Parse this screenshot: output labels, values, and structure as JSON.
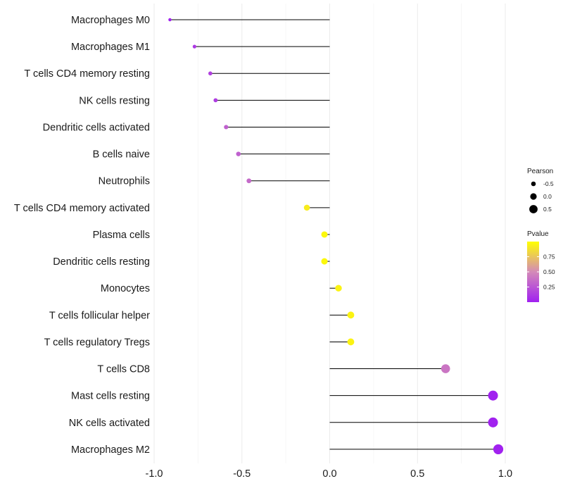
{
  "chart_data": {
    "type": "lollipop",
    "categories": [
      "Macrophages M0",
      "Macrophages M1",
      "T cells CD4 memory resting",
      "NK cells resting",
      "Dendritic cells activated",
      "B cells naive",
      "Neutrophils",
      "T cells CD4 memory activated",
      "Plasma cells",
      "Dendritic cells resting",
      "Monocytes",
      "T cells follicular helper",
      "T cells regulatory  Tregs",
      "T cells CD8",
      "Mast cells resting",
      "NK cells activated",
      "Macrophages M2"
    ],
    "values": [
      -0.91,
      -0.77,
      -0.68,
      -0.65,
      -0.59,
      -0.52,
      -0.46,
      -0.13,
      -0.03,
      -0.03,
      0.05,
      0.12,
      0.12,
      0.66,
      0.93,
      0.93,
      0.96
    ],
    "pvalues": [
      0.01,
      0.12,
      0.15,
      0.13,
      0.3,
      0.3,
      0.35,
      0.92,
      0.97,
      0.97,
      0.95,
      0.95,
      0.95,
      0.4,
      0.01,
      0.01,
      0.01
    ],
    "xlim": [
      -1.0,
      1.0
    ],
    "x_ticks": [
      "-1.0",
      "-0.5",
      "0.0",
      "0.5",
      "1.0"
    ],
    "x_tick_values": [
      -1.0,
      -0.5,
      0.0,
      0.5,
      1.0
    ],
    "xlabel": "",
    "ylabel": "",
    "legend": {
      "size_title": "Pearson",
      "size_items": [
        {
          "label": "-0.5",
          "value": -0.5
        },
        {
          "label": "0.0",
          "value": 0.0
        },
        {
          "label": "0.5",
          "value": 0.5
        }
      ],
      "color_title": "Pvalue",
      "color_ticks": [
        {
          "label": "0.75",
          "value": 0.75
        },
        {
          "label": "0.50",
          "value": 0.5
        },
        {
          "label": "0.25",
          "value": 0.25
        }
      ],
      "color_range": [
        0.0,
        1.0
      ],
      "color_low": "#a020f0",
      "color_mid": "#d48ab8",
      "color_high": "#ffff00",
      "placement": "right"
    },
    "line_color": "#000000",
    "grid": true
  }
}
